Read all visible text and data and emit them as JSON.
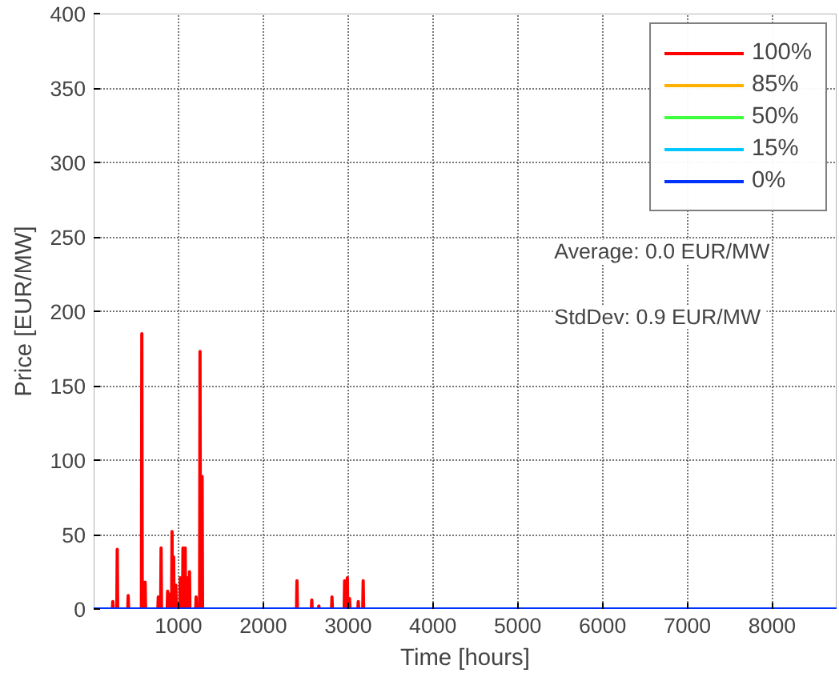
{
  "chart_data": {
    "type": "line",
    "xlabel": "Time [hours]",
    "ylabel": "Price [EUR/MW]",
    "xlim": [
      0,
      8760
    ],
    "ylim": [
      0,
      400
    ],
    "xticks": [
      1000,
      2000,
      3000,
      4000,
      5000,
      6000,
      7000,
      8000
    ],
    "yticks": [
      0,
      50,
      100,
      150,
      200,
      250,
      300,
      350,
      400
    ],
    "grid": true,
    "legend": "top right",
    "marker": "none",
    "line_style": "solid",
    "annotations": [
      "Average: 0.0 EUR/MW",
      "StdDev:  0.9 EUR/MW"
    ],
    "series": [
      {
        "name": "100%",
        "color": "#ff0000",
        "x": [
          0,
          221,
          226,
          231,
          273,
          278,
          283,
          402,
          407,
          412,
          563,
          568,
          573,
          602,
          607,
          612,
          757,
          762,
          767,
          790,
          795,
          800,
          867,
          872,
          877,
          892,
          897,
          902,
          919,
          924,
          929,
          938,
          943,
          948,
          964,
          969,
          974,
          1016,
          1021,
          1026,
          1048,
          1053,
          1058,
          1074,
          1079,
          1084,
          1100,
          1105,
          1110,
          1125,
          1130,
          1135,
          1203,
          1208,
          1213,
          1249,
          1254,
          1259,
          1274,
          1279,
          1284,
          2392,
          2397,
          2402,
          2567,
          2572,
          2577,
          2650,
          2655,
          2660,
          2805,
          2810,
          2815,
          2954,
          2959,
          2964,
          2986,
          2991,
          2996,
          3012,
          3017,
          3022,
          3115,
          3120,
          3125,
          3173,
          3178,
          3183,
          8760
        ],
        "values": [
          0,
          0,
          5,
          0,
          0,
          40,
          0,
          0,
          9,
          0,
          0,
          185,
          0,
          0,
          18,
          0,
          0,
          8,
          0,
          0,
          41,
          0,
          0,
          12,
          0,
          0,
          10,
          0,
          0,
          52,
          0,
          0,
          35,
          0,
          0,
          16,
          0,
          0,
          21,
          0,
          0,
          41,
          0,
          0,
          41,
          0,
          0,
          21,
          0,
          0,
          25,
          0,
          0,
          8,
          0,
          0,
          173,
          0,
          0,
          89,
          0,
          0,
          19,
          0,
          0,
          6,
          0,
          0,
          2,
          0,
          0,
          8,
          0,
          0,
          19,
          0,
          0,
          21,
          0,
          0,
          7,
          0,
          0,
          5,
          0,
          0,
          19,
          0,
          0
        ]
      },
      {
        "name": "85%",
        "color": "#ffb000"
      },
      {
        "name": "50%",
        "color": "#40ff40"
      },
      {
        "name": "15%",
        "color": "#00c8ff"
      },
      {
        "name": "0%",
        "color": "#0033ff",
        "x": [
          0,
          8760
        ],
        "values": [
          0,
          0
        ]
      }
    ]
  }
}
